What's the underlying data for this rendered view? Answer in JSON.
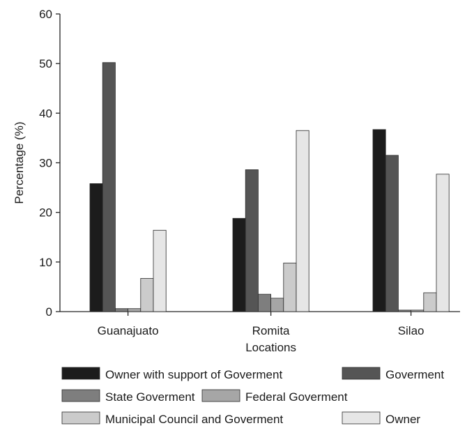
{
  "chart_data": {
    "type": "bar",
    "xlabel": "Locations",
    "ylabel": "Percentage (%)",
    "ylim": [
      0,
      60
    ],
    "yticks": [
      0,
      10,
      20,
      30,
      40,
      50,
      60
    ],
    "grid": false,
    "legend_position": "bottom",
    "categories": [
      "Guanajuato",
      "Romita",
      "Silao"
    ],
    "series": [
      {
        "name": "Owner with support of Goverment",
        "color": "#1c1c1c",
        "values": [
          25.8,
          18.8,
          36.7
        ]
      },
      {
        "name": "Goverment",
        "color": "#555555",
        "values": [
          50.2,
          28.6,
          31.5
        ]
      },
      {
        "name": "State Goverment",
        "color": "#7e7e7e",
        "values": [
          0.6,
          3.5,
          0.3
        ]
      },
      {
        "name": "Federal Goverment",
        "color": "#a6a6a6",
        "values": [
          0.6,
          2.7,
          0.3
        ]
      },
      {
        "name": "Municipal Council and  Goverment",
        "color": "#cbcbcb",
        "values": [
          6.7,
          9.8,
          3.8
        ]
      },
      {
        "name": "Owner",
        "color": "#e6e6e6",
        "values": [
          16.4,
          36.5,
          27.7
        ]
      }
    ]
  }
}
